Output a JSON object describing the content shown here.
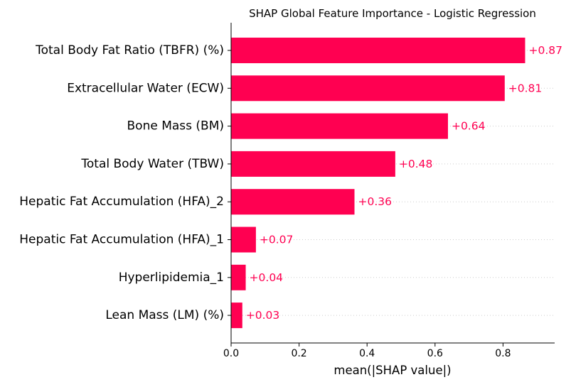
{
  "chart_data": {
    "type": "bar",
    "orientation": "horizontal",
    "title": "SHAP Global Feature Importance - Logistic Regression",
    "xlabel": "mean(|SHAP value|)",
    "ylabel": "",
    "xlim": [
      0,
      0.95
    ],
    "xticks": [
      0.0,
      0.2,
      0.4,
      0.6,
      0.8
    ],
    "xtick_labels": [
      "0.0",
      "0.2",
      "0.4",
      "0.6",
      "0.8"
    ],
    "categories": [
      "Total Body Fat Ratio (TBFR) (%)",
      "Extracellular Water (ECW)",
      "Bone Mass (BM)",
      "Total Body Water (TBW)",
      "Hepatic Fat Accumulation (HFA)_2",
      "Hepatic Fat Accumulation (HFA)_1",
      "Hyperlipidemia_1",
      "Lean Mass (LM) (%)"
    ],
    "values": [
      0.865,
      0.805,
      0.638,
      0.483,
      0.363,
      0.073,
      0.043,
      0.033
    ],
    "value_labels": [
      "+0.87",
      "+0.81",
      "+0.64",
      "+0.48",
      "+0.36",
      "+0.07",
      "+0.04",
      "+0.03"
    ],
    "bar_color": "#ff0051",
    "label_color": "#ff0051",
    "gridlines": "dotted horizontal guides per row",
    "legend": "none"
  }
}
